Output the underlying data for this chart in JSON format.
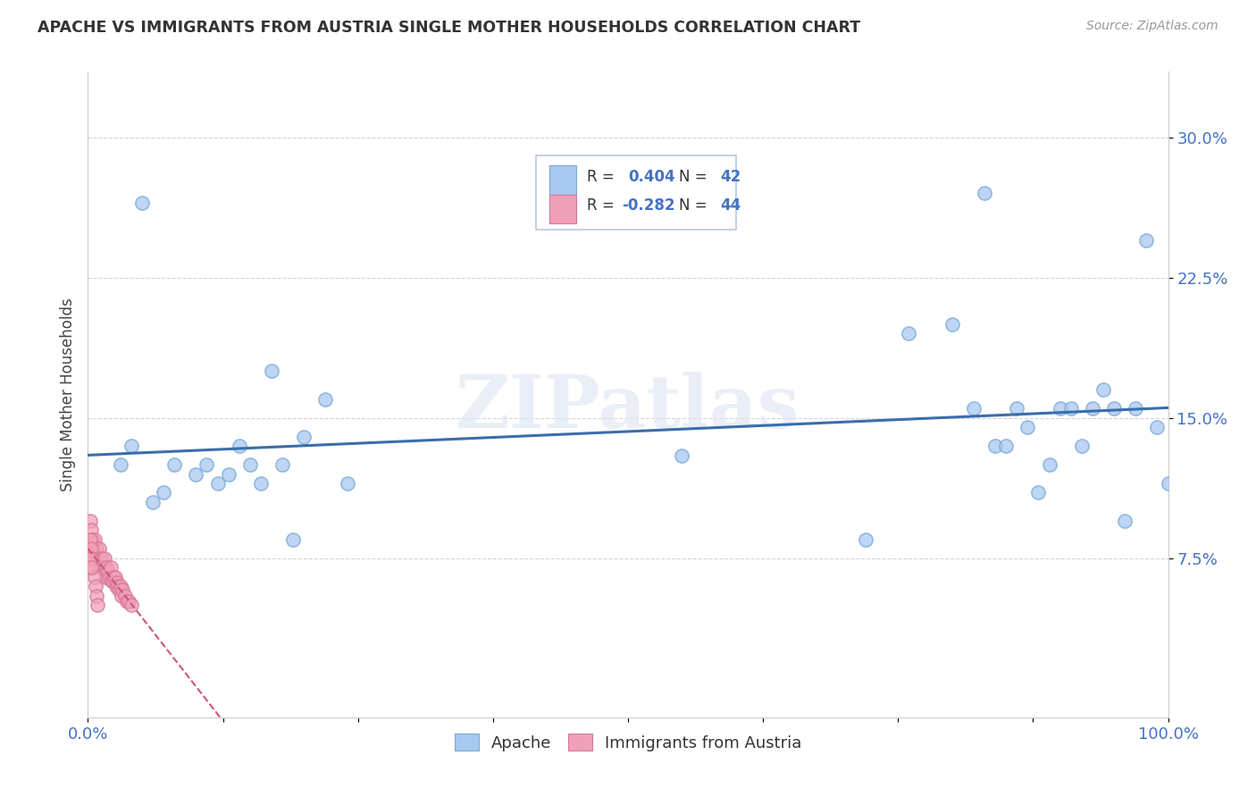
{
  "title": "APACHE VS IMMIGRANTS FROM AUSTRIA SINGLE MOTHER HOUSEHOLDS CORRELATION CHART",
  "source": "Source: ZipAtlas.com",
  "ylabel": "Single Mother Households",
  "xlim": [
    0,
    1.0
  ],
  "ylim": [
    -0.01,
    0.335
  ],
  "yticks": [
    0.075,
    0.15,
    0.225,
    0.3
  ],
  "ytick_labels": [
    "7.5%",
    "15.0%",
    "22.5%",
    "30.0%"
  ],
  "xticks": [
    0.0,
    0.125,
    0.25,
    0.375,
    0.5,
    0.625,
    0.75,
    0.875,
    1.0
  ],
  "xtick_labels": [
    "0.0%",
    "",
    "",
    "",
    "",
    "",
    "",
    "",
    "100.0%"
  ],
  "apache_color": "#a8c8f0",
  "apache_edge": "#7aaad8",
  "austria_color": "#f0a0b8",
  "austria_edge": "#d87898",
  "trend_color_apache": "#3a6eaa",
  "trend_color_austria": "#cc5577",
  "watermark": "ZIPatlas",
  "apache_x": [
    0.05,
    0.08,
    0.1,
    0.11,
    0.12,
    0.13,
    0.14,
    0.15,
    0.16,
    0.17,
    0.18,
    0.19,
    0.2,
    0.22,
    0.24,
    0.55,
    0.72,
    0.76,
    0.8,
    0.82,
    0.83,
    0.84,
    0.85,
    0.86,
    0.87,
    0.88,
    0.89,
    0.9,
    0.91,
    0.92,
    0.93,
    0.94,
    0.95,
    0.96,
    0.97,
    0.98,
    0.99,
    1.0,
    0.03,
    0.04,
    0.06,
    0.07
  ],
  "apache_y": [
    0.265,
    0.125,
    0.12,
    0.125,
    0.115,
    0.12,
    0.135,
    0.125,
    0.115,
    0.175,
    0.125,
    0.085,
    0.14,
    0.16,
    0.115,
    0.13,
    0.085,
    0.195,
    0.2,
    0.155,
    0.27,
    0.135,
    0.135,
    0.155,
    0.145,
    0.11,
    0.125,
    0.155,
    0.155,
    0.135,
    0.155,
    0.165,
    0.155,
    0.095,
    0.155,
    0.245,
    0.145,
    0.115,
    0.125,
    0.135,
    0.105,
    0.11
  ],
  "austria_x": [
    0.002,
    0.003,
    0.004,
    0.005,
    0.006,
    0.007,
    0.008,
    0.009,
    0.01,
    0.011,
    0.012,
    0.013,
    0.014,
    0.015,
    0.016,
    0.017,
    0.018,
    0.019,
    0.02,
    0.021,
    0.022,
    0.023,
    0.024,
    0.025,
    0.026,
    0.027,
    0.028,
    0.029,
    0.03,
    0.031,
    0.032,
    0.034,
    0.036,
    0.038,
    0.04,
    0.002,
    0.003,
    0.004,
    0.005,
    0.006,
    0.007,
    0.008,
    0.009,
    0.002,
    0.003
  ],
  "austria_y": [
    0.095,
    0.09,
    0.085,
    0.08,
    0.085,
    0.075,
    0.08,
    0.075,
    0.08,
    0.075,
    0.07,
    0.075,
    0.07,
    0.075,
    0.065,
    0.07,
    0.065,
    0.068,
    0.065,
    0.07,
    0.063,
    0.063,
    0.065,
    0.065,
    0.06,
    0.062,
    0.06,
    0.058,
    0.06,
    0.055,
    0.058,
    0.055,
    0.052,
    0.052,
    0.05,
    0.085,
    0.08,
    0.075,
    0.07,
    0.065,
    0.06,
    0.055,
    0.05,
    0.075,
    0.07
  ]
}
